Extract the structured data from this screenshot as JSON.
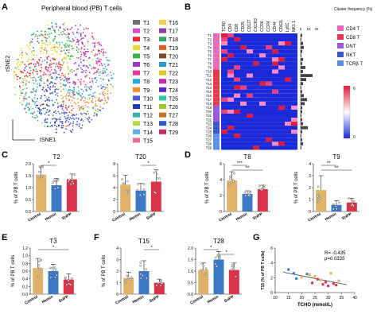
{
  "panel_letters": [
    "A",
    "B",
    "C",
    "D",
    "E",
    "F",
    "G"
  ],
  "colors": {
    "control": "#E0B26A",
    "hemin": "#3D78C4",
    "snpp": "#D9344A",
    "heat_low": "#1A2AD8",
    "heat_high": "#E01A3A"
  },
  "chart_data": [
    {
      "id": "A",
      "type": "scatter",
      "title": "Peripheral blood (PB) T cells",
      "xlabel": "tSNE1",
      "ylabel": "tSNE2",
      "legend_col1": [
        "T1",
        "T2",
        "T3",
        "T4",
        "T5",
        "T6",
        "T7",
        "T8",
        "T9",
        "T10",
        "T11",
        "T12",
        "T13",
        "T14",
        "T15"
      ],
      "legend_col2": [
        "T16",
        "T17",
        "T18",
        "T19",
        "T20",
        "T21",
        "T22",
        "T23",
        "T24",
        "T25",
        "T26",
        "T27",
        "T28",
        "T29"
      ],
      "legend_colors": [
        "#6F6F6F",
        "#D94BC0",
        "#E02A3A",
        "#E8DD2A",
        "#3BB54A",
        "#A035C9",
        "#E7349B",
        "#2DA3E0",
        "#F28B2B",
        "#4E5BD6",
        "#1E3CB5",
        "#38B2A8",
        "#B8D64A",
        "#5FB0E8",
        "#E76F9E",
        "#F2D14B",
        "#8C3FA8",
        "#2FA86A",
        "#E05A2A",
        "#7A4A2A",
        "#2A9AD8",
        "#D8C82A",
        "#C82AA8",
        "#5A2AC8",
        "#2AC8A0",
        "#A0C82A",
        "#C8702A",
        "#2A5AC8",
        "#C82A5A"
      ]
    },
    {
      "id": "B",
      "type": "heatmap",
      "markers": [
        "TCRβ",
        "CD4",
        "CD8",
        "CD25",
        "CD127",
        "CXCR3",
        "CCR6",
        "CCR4",
        "CD44",
        "CD62L",
        "Ly6C",
        "NK1.1"
      ],
      "rows": [
        "T1",
        "T2",
        "T3",
        "T4",
        "T5",
        "T6",
        "T7",
        "T8",
        "T9",
        "T10",
        "T11",
        "T12",
        "T13",
        "T14",
        "T15",
        "T16",
        "T17",
        "T18",
        "T19",
        "T20",
        "T21",
        "T22",
        "T23",
        "T24",
        "T25",
        "T26",
        "T27",
        "T28",
        "T29"
      ],
      "cluster_freq_label": "Cluster frequency (%)",
      "cluster_freq_ticks": [
        "0",
        "10",
        "20"
      ],
      "cluster_freq": [
        2,
        1,
        3,
        4,
        2,
        1,
        3,
        2,
        6,
        3,
        15,
        7,
        3,
        1,
        2,
        4,
        8,
        5,
        2,
        2,
        1,
        2,
        3,
        9,
        2,
        1,
        2,
        3,
        1
      ],
      "colorbar_ticks": [
        "0",
        "6"
      ],
      "category_legend": [
        {
          "label": "CD4 T",
          "color": "#E86AB8"
        },
        {
          "label": "CD8 T",
          "color": "#E23A4B"
        },
        {
          "label": "DNT",
          "color": "#9A5AD8"
        },
        {
          "label": "NKT",
          "color": "#3A55C8"
        },
        {
          "label": "TCRβ T",
          "color": "#5A8FE8"
        }
      ],
      "row_category": [
        0,
        0,
        0,
        0,
        0,
        0,
        0,
        0,
        0,
        1,
        1,
        1,
        1,
        1,
        1,
        1,
        1,
        1,
        2,
        2,
        2,
        2,
        3,
        3,
        3,
        4,
        4,
        4,
        4
      ]
    },
    {
      "id": "C1",
      "type": "bar",
      "title": "T2",
      "ylabel": "% of PB T cells",
      "categories": [
        "Control",
        "Hemin",
        "SnPP"
      ],
      "values": [
        1.55,
        1.1,
        1.35
      ],
      "errors": [
        0.35,
        0.28,
        0.22
      ],
      "ylim": [
        0,
        2.0
      ],
      "yticks": [
        "0.0",
        "0.5",
        "1.0",
        "1.5",
        "2.0"
      ],
      "sig": [
        {
          "from": 0,
          "to": 1,
          "label": "*"
        }
      ]
    },
    {
      "id": "C2",
      "type": "bar",
      "title": "T20",
      "ylabel": "",
      "categories": [
        "Control",
        "Hemin",
        "SnPP"
      ],
      "values": [
        4.5,
        3.5,
        5.0
      ],
      "errors": [
        1.6,
        1.2,
        2.0
      ],
      "ylim": [
        0,
        8
      ],
      "yticks": [
        "0",
        "2",
        "4",
        "6",
        "8"
      ],
      "sig": [
        {
          "from": 1,
          "to": 2,
          "label": "*"
        }
      ]
    },
    {
      "id": "D1",
      "type": "bar",
      "title": "T8",
      "ylabel": "% of PB T cells",
      "categories": [
        "Control",
        "Hemin",
        "SnPP"
      ],
      "values": [
        3.9,
        2.2,
        2.8
      ],
      "errors": [
        1.1,
        0.4,
        0.5
      ],
      "ylim": [
        0,
        6
      ],
      "yticks": [
        "0",
        "2",
        "4",
        "6"
      ],
      "sig": [
        {
          "from": 0,
          "to": 1,
          "label": "***"
        },
        {
          "from": 0,
          "to": 2,
          "label": "**"
        }
      ]
    },
    {
      "id": "D2",
      "type": "bar",
      "title": "T9",
      "ylabel": "% of PB T cells",
      "categories": [
        "Control",
        "Hemin",
        "SnPP"
      ],
      "values": [
        1.8,
        0.55,
        0.75
      ],
      "errors": [
        1.2,
        0.35,
        0.35
      ],
      "ylim": [
        0,
        4
      ],
      "yticks": [
        "0",
        "1",
        "2",
        "3",
        "4"
      ],
      "sig": [
        {
          "from": 0,
          "to": 1,
          "label": "**"
        },
        {
          "from": 0,
          "to": 2,
          "label": "**"
        }
      ]
    },
    {
      "id": "E1",
      "type": "bar",
      "title": "T3",
      "ylabel": "% of PB T cells",
      "categories": [
        "Control",
        "Hemin",
        "SnPP"
      ],
      "values": [
        0.68,
        0.6,
        0.38
      ],
      "errors": [
        0.25,
        0.18,
        0.15
      ],
      "ylim": [
        0,
        1.2
      ],
      "yticks": [
        "0.0",
        "0.2",
        "0.4",
        "0.6",
        "0.8",
        "1.0",
        "1.2"
      ],
      "sig": [
        {
          "from": 0,
          "to": 2,
          "label": "*"
        }
      ]
    },
    {
      "id": "F1",
      "type": "bar",
      "title": "T15",
      "ylabel": "% of PB T cells",
      "categories": [
        "Control",
        "Hemin",
        "SnPP"
      ],
      "values": [
        1.4,
        2.0,
        1.0
      ],
      "errors": [
        0.5,
        0.9,
        0.3
      ],
      "ylim": [
        0,
        4
      ],
      "yticks": [
        "0",
        "1",
        "2",
        "3",
        "4"
      ],
      "sig": [
        {
          "from": 1,
          "to": 2,
          "label": "*"
        }
      ]
    },
    {
      "id": "F2",
      "type": "bar",
      "title": "T28",
      "ylabel": "",
      "categories": [
        "Control",
        "Hemin",
        "SnPP"
      ],
      "values": [
        1.05,
        1.5,
        1.05
      ],
      "errors": [
        0.3,
        0.35,
        0.3
      ],
      "ylim": [
        0,
        2.0
      ],
      "yticks": [
        "0.0",
        "0.5",
        "1.0",
        "1.5",
        "2.0"
      ],
      "sig": [
        {
          "from": 0,
          "to": 1,
          "label": "*"
        },
        {
          "from": 1,
          "to": 2,
          "label": "*"
        }
      ]
    },
    {
      "id": "G",
      "type": "scatter",
      "xlabel": "TCHO (mmol/L)",
      "ylabel": "T15 (% of PB T cells)",
      "xlim": [
        10,
        40
      ],
      "ylim": [
        0,
        6
      ],
      "xticks": [
        "10",
        "15",
        "20",
        "25",
        "30",
        "35",
        "40"
      ],
      "yticks": [
        "0",
        "2",
        "4",
        "6"
      ],
      "annotation_r": "R= -0.435",
      "annotation_p": "p=0.0335",
      "points": [
        {
          "x": 15,
          "y": 3.1,
          "g": 1
        },
        {
          "x": 17,
          "y": 2.6,
          "g": 1
        },
        {
          "x": 18,
          "y": 1.9,
          "g": 1
        },
        {
          "x": 22,
          "y": 2.5,
          "g": 1
        },
        {
          "x": 20,
          "y": 2.1,
          "g": 0
        },
        {
          "x": 23,
          "y": 2.4,
          "g": 0
        },
        {
          "x": 25,
          "y": 2.2,
          "g": 0
        },
        {
          "x": 27,
          "y": 1.7,
          "g": 0
        },
        {
          "x": 31,
          "y": 2.6,
          "g": 0
        },
        {
          "x": 34,
          "y": 1.6,
          "g": 0
        },
        {
          "x": 24,
          "y": 1.3,
          "g": 2
        },
        {
          "x": 26,
          "y": 1.8,
          "g": 2
        },
        {
          "x": 28,
          "y": 1.1,
          "g": 2
        },
        {
          "x": 29,
          "y": 1.4,
          "g": 2
        },
        {
          "x": 30,
          "y": 0.9,
          "g": 2
        },
        {
          "x": 32,
          "y": 1.2,
          "g": 2
        },
        {
          "x": 33,
          "y": 1.0,
          "g": 2
        }
      ],
      "fit": {
        "x0": 13,
        "y0": 2.75,
        "x1": 37,
        "y1": 1.05
      }
    }
  ]
}
